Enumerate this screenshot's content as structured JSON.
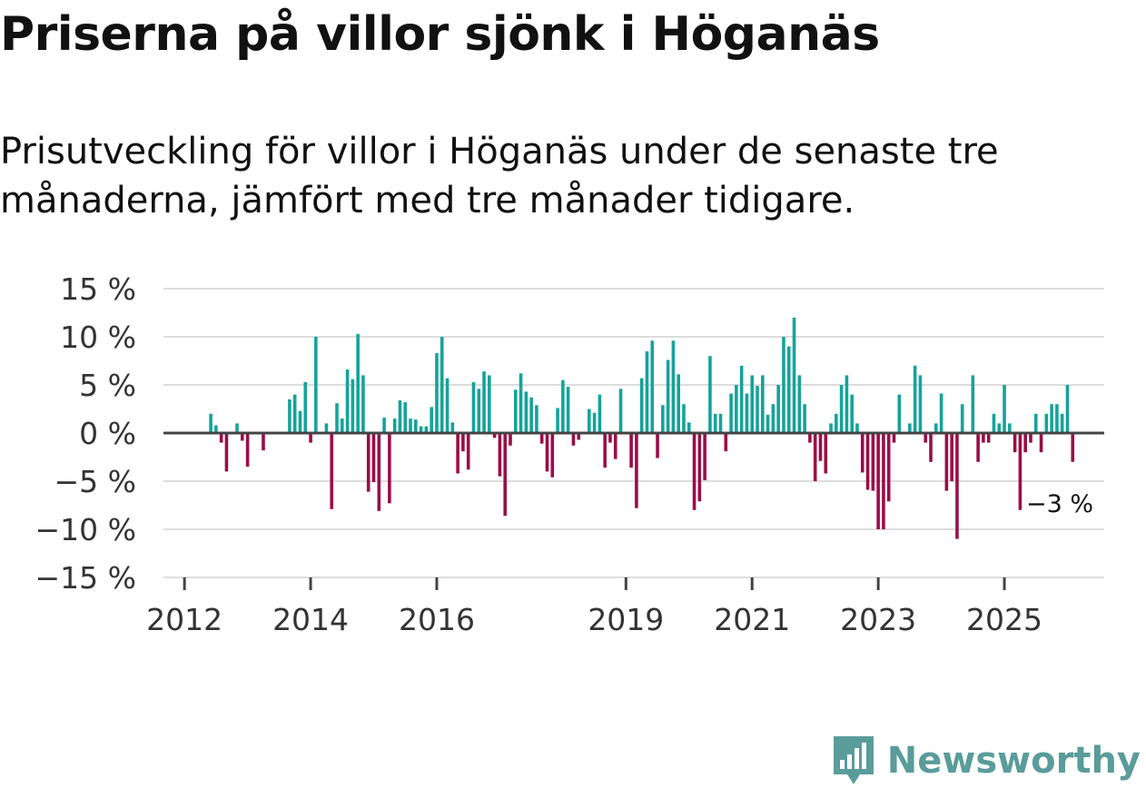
{
  "header": {
    "title": "Priserna på villor sjönk i Höganäs",
    "subtitle": "Prisutveckling för villor i Höganäs under de senaste tre månaderna, jämfört med tre månader tidigare."
  },
  "brand": {
    "name": "Newsworthy",
    "icon": "newsworthy-logo-icon"
  },
  "colors": {
    "positive": "#15a39a",
    "negative": "#9a0e46",
    "zero_line": "#444444",
    "grid": "#dddddd",
    "brand": "#5a9c9a"
  },
  "chart_data": {
    "type": "bar",
    "title": "Priserna på villor sjönk i Höganäs",
    "xlabel": "",
    "ylabel": "",
    "ylim": [
      -15,
      15
    ],
    "y_ticks": [
      15,
      10,
      5,
      0,
      -5,
      -10,
      -15
    ],
    "y_tick_labels": [
      "15 %",
      "10 %",
      "5 %",
      "0 %",
      "−5 %",
      "−10 %",
      "−15 %"
    ],
    "x_ticks": [
      {
        "label": "2012",
        "month_index": 0
      },
      {
        "label": "2014",
        "month_index": 24
      },
      {
        "label": "2016",
        "month_index": 48
      },
      {
        "label": "2019",
        "month_index": 84
      },
      {
        "label": "2021",
        "month_index": 108
      },
      {
        "label": "2023",
        "month_index": 132
      },
      {
        "label": "2025",
        "month_index": 156
      }
    ],
    "x_range_months": [
      -4,
      175
    ],
    "start_month_index": 5,
    "last_value_label": "−3 %",
    "values": [
      2,
      0.8,
      -1,
      -4,
      0,
      1,
      -0.8,
      -3.5,
      0,
      0,
      -1.8,
      0,
      0,
      0,
      0,
      3.5,
      4,
      2.3,
      5.3,
      -1,
      10,
      0,
      1,
      -7.9,
      3.1,
      1.5,
      6.6,
      5.6,
      10.3,
      6,
      -6.1,
      -5.1,
      -8.1,
      1.6,
      -7.3,
      1.5,
      3.4,
      3.2,
      1.5,
      1.4,
      0.7,
      0.7,
      2.7,
      8.3,
      10,
      5.7,
      1.1,
      -4.2,
      -1.9,
      -3.8,
      5.3,
      4.6,
      6.4,
      6,
      -0.5,
      -4.5,
      -8.6,
      -1.3,
      4.5,
      6.2,
      4.3,
      3.7,
      2.9,
      -1.1,
      -4,
      -4.6,
      2.6,
      5.5,
      4.8,
      -1.3,
      -0.7,
      0,
      2.5,
      2.1,
      4,
      -3.6,
      -1,
      -2.7,
      4.6,
      0,
      -3.6,
      -7.8,
      5.7,
      8.5,
      9.6,
      -2.6,
      2.9,
      7.6,
      9.6,
      6.1,
      3,
      1.1,
      -8,
      -7.1,
      -4.9,
      8,
      2,
      2,
      -1.9,
      4.1,
      5,
      7,
      4.1,
      6,
      4.9,
      6,
      1.9,
      3,
      5,
      10,
      9,
      12,
      6,
      3,
      -1,
      -5,
      -2.9,
      -4.2,
      1,
      2,
      5,
      6,
      4,
      1,
      -4.1,
      -5.9,
      -6,
      -10,
      -10,
      -7.1,
      -1,
      4,
      0,
      1,
      7,
      6,
      -1,
      -3,
      1,
      4.1,
      -6,
      -5,
      -11,
      3,
      0,
      6,
      -3,
      -1,
      -1,
      2,
      1,
      5,
      1,
      -2,
      -8,
      -2,
      -1,
      2,
      -2,
      2,
      3,
      3,
      2,
      5,
      -3
    ]
  }
}
